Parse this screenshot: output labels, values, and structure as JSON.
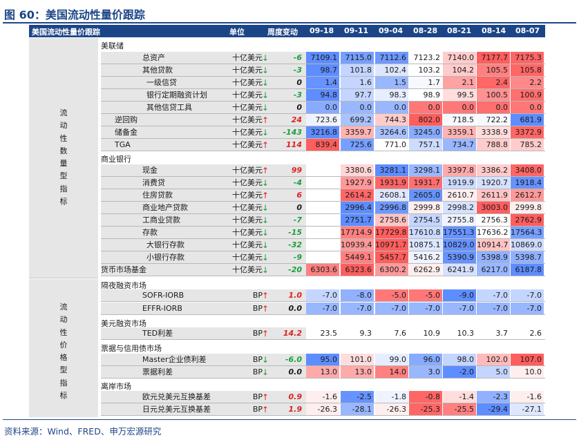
{
  "title": "图 60：美国流动性量价跟踪",
  "source": "资料来源：Wind、FRED、申万宏源研究",
  "header": {
    "name": "美国流动性量价跟踪",
    "unit": "单位",
    "change": "周度变动",
    "dates": [
      "09-18",
      "09-11",
      "09-04",
      "08-28",
      "08-21",
      "08-14",
      "08-07"
    ]
  },
  "groups": {
    "quantity": "流动性数量型指标",
    "price": "流动性价格型指标"
  },
  "sections": {
    "fed": "美联储",
    "bank": "商业银行",
    "overnight": "隔夜融资市场",
    "usd_funding": "美元融资市场",
    "bill_credit": "票据与信用债市场",
    "offshore": "离岸市场"
  },
  "colors": {
    "header": "#1c4587",
    "up": "#e02020",
    "down": "#1aa03a"
  },
  "rows": [
    {
      "label": "总资产",
      "unit": "十亿美元",
      "dir": "down",
      "chg": "-6",
      "cells": [
        "7109.1",
        "7115.0",
        "7112.6",
        "7123.2",
        "7140.0",
        "7177.7",
        "7175.3"
      ],
      "heat": [
        -0.95,
        -0.8,
        -0.85,
        0,
        0.3,
        0.95,
        0.9
      ]
    },
    {
      "label": "其他贷款",
      "unit": "十亿美元",
      "dir": "down",
      "chg": "-3",
      "cells": [
        "98.7",
        "101.8",
        "102.4",
        "103.2",
        "104.2",
        "105.5",
        "105.8"
      ],
      "heat": [
        -0.95,
        -0.35,
        -0.2,
        0,
        0.3,
        0.75,
        0.9
      ]
    },
    {
      "label": "一级信贷",
      "unit": "十亿美元",
      "dir": "down",
      "chg": "0",
      "cells": [
        "1.4",
        "1.6",
        "1.5",
        "1.7",
        "2.1",
        "2.4",
        "2.2"
      ],
      "heat": [
        -0.9,
        -0.35,
        -0.6,
        -0.05,
        0.55,
        0.9,
        0.7
      ]
    },
    {
      "label": "银行定期融资计划",
      "unit": "十亿美元",
      "dir": "down",
      "chg": "-3",
      "cells": [
        "94.8",
        "97.7",
        "98.3",
        "98.9",
        "99.5",
        "100.5",
        "100.9"
      ],
      "heat": [
        -0.95,
        -0.35,
        -0.15,
        0,
        0.2,
        0.65,
        0.85
      ]
    },
    {
      "label": "其他信贷工具",
      "unit": "十亿美元",
      "dir": "down",
      "chg": "0",
      "cells": [
        "0.0",
        "0.0",
        "0.0",
        "0.0",
        "0.0",
        "0.0",
        "0.0"
      ],
      "heat": [
        -0.7,
        -0.6,
        -0.6,
        0.8,
        0.8,
        0.85,
        0.8
      ]
    },
    {
      "label": "逆回购",
      "unit": "十亿美元",
      "dir": "up",
      "chg": "24",
      "cells": [
        "723.6",
        "699.2",
        "744.3",
        "802.0",
        "718.5",
        "722.2",
        "681.9"
      ],
      "heat": [
        -0.1,
        -0.5,
        0.3,
        0.95,
        -0.05,
        -0.05,
        -0.95
      ]
    },
    {
      "label": "储备金",
      "unit": "十亿美元",
      "dir": "down",
      "chg": "-143",
      "cells": [
        "3216.8",
        "3359.7",
        "3264.6",
        "3245.0",
        "3359.1",
        "3338.9",
        "3372.9"
      ],
      "heat": [
        -0.95,
        0.45,
        -0.5,
        -0.7,
        0.45,
        0.2,
        0.9
      ]
    },
    {
      "label": "TGA",
      "unit": "十亿美元",
      "dir": "up",
      "chg": "114",
      "cells": [
        "839.4",
        "725.6",
        "771.0",
        "757.1",
        "734.7",
        "788.8",
        "785.2"
      ],
      "heat": [
        0.95,
        -0.8,
        0.0,
        -0.3,
        -0.6,
        0.3,
        0.3
      ]
    },
    {
      "label": "现金",
      "unit": "十亿美元",
      "dir": "up",
      "chg": "99",
      "cells": [
        "",
        "3380.6",
        "3281.1",
        "3298.1",
        "3397.8",
        "3386.2",
        "3408.0"
      ],
      "heat": [
        null,
        0.25,
        -0.95,
        -0.6,
        0.5,
        0.3,
        0.9
      ]
    },
    {
      "label": "消费贷",
      "unit": "十亿美元",
      "dir": "down",
      "chg": "-4",
      "cells": [
        "",
        "1927.9",
        "1931.9",
        "1931.7",
        "1919.9",
        "1920.7",
        "1918.4"
      ],
      "heat": [
        null,
        0.6,
        0.9,
        0.85,
        -0.3,
        -0.25,
        -0.9
      ]
    },
    {
      "label": "住房贷款",
      "unit": "十亿美元",
      "dir": "up",
      "chg": "6",
      "cells": [
        "",
        "2614.2",
        "2608.1",
        "2605.0",
        "2610.7",
        "2611.9",
        "2612.7"
      ],
      "heat": [
        null,
        0.9,
        -0.2,
        -0.9,
        0.1,
        0.35,
        0.6
      ]
    },
    {
      "label": "商业地产贷款",
      "unit": "十亿美元",
      "dir": "down",
      "chg": "0",
      "cells": [
        "",
        "2996.4",
        "2996.8",
        "2999.8",
        "2998.2",
        "3003.0",
        "2999.8"
      ],
      "heat": [
        null,
        -0.95,
        -0.85,
        0.1,
        -0.25,
        0.95,
        0.1
      ]
    },
    {
      "label": "工商业贷款",
      "unit": "十亿美元",
      "dir": "down",
      "chg": "-7",
      "cells": [
        "",
        "2751.7",
        "2758.6",
        "2754.5",
        "2755.8",
        "2756.3",
        "2762.9"
      ],
      "heat": [
        null,
        -0.95,
        0.35,
        -0.35,
        -0.1,
        0.0,
        0.95
      ]
    },
    {
      "label": "存款",
      "unit": "十亿美元",
      "dir": "down",
      "chg": "-15",
      "cells": [
        "",
        "17714.9",
        "17729.8",
        "17610.8",
        "17551.3",
        "17636.2",
        "17564.3"
      ],
      "heat": [
        null,
        0.75,
        0.95,
        -0.3,
        -0.9,
        0.0,
        -0.8
      ]
    },
    {
      "label": "大银行存款",
      "unit": "十亿美元",
      "dir": "down",
      "chg": "-32",
      "cells": [
        "",
        "10939.4",
        "10971.7",
        "10875.1",
        "10829.0",
        "10914.7",
        "10869.0"
      ],
      "heat": [
        null,
        0.6,
        0.95,
        -0.2,
        -0.9,
        0.35,
        -0.3
      ]
    },
    {
      "label": "小银行存款",
      "unit": "十亿美元",
      "dir": "down",
      "chg": "-9",
      "cells": [
        "",
        "5449.1",
        "5457.7",
        "5416.2",
        "5390.9",
        "5398.9",
        "5398.7"
      ],
      "heat": [
        null,
        0.75,
        0.95,
        -0.1,
        -0.9,
        -0.65,
        -0.65
      ]
    },
    {
      "label": "货币市场基金",
      "unit": "十亿美元",
      "dir": "down",
      "chg": "-20",
      "cells": [
        "6303.6",
        "6323.6",
        "6300.2",
        "6262.9",
        "6241.9",
        "6217.0",
        "6187.8"
      ],
      "heat": [
        0.75,
        0.95,
        0.6,
        0.1,
        -0.25,
        -0.6,
        -0.95
      ]
    },
    {
      "label": "SOFR-IORB",
      "unit": "BP",
      "dir": "up",
      "chg": "1.0",
      "cells": [
        "-7.0",
        "-8.0",
        "-5.0",
        "-5.0",
        "-9.0",
        "-7.0",
        "-7.0"
      ],
      "heat": [
        -0.35,
        -0.65,
        0.8,
        0.8,
        -0.95,
        -0.35,
        -0.35
      ]
    },
    {
      "label": "EFFR-IORB",
      "unit": "BP",
      "dir": "up",
      "chg": "0.0",
      "cells": [
        "-7.0",
        "-7.0",
        "-7.0",
        "-7.0",
        "-7.0",
        "-7.0",
        "-7.0"
      ],
      "heat": [
        -0.6,
        -0.6,
        -0.6,
        -0.6,
        -0.6,
        -0.6,
        -0.6
      ]
    },
    {
      "label": "TED利差",
      "unit": "BP",
      "dir": "up",
      "chg": "14.2",
      "cells": [
        "23.5",
        "9.3",
        "7.6",
        "10.9",
        "10.3",
        "3.7",
        "2.6"
      ],
      "heat": [
        0,
        0,
        0,
        0,
        0,
        0,
        0
      ]
    },
    {
      "label": "Master企业债利差",
      "unit": "BP",
      "dir": "down",
      "chg": "-6.0",
      "cells": [
        "95.0",
        "101.0",
        "99.0",
        "96.0",
        "98.0",
        "102.0",
        "107.0"
      ],
      "heat": [
        -0.95,
        0.2,
        -0.15,
        -0.7,
        -0.35,
        0.4,
        0.95
      ]
    },
    {
      "label": "票据利差",
      "unit": "BP",
      "dir": "down",
      "chg": "0.0",
      "cells": [
        "13.0",
        "13.0",
        "14.0",
        "3.0",
        "-2.0",
        "5.0",
        "10.0"
      ],
      "heat": [
        0.5,
        0.5,
        0.75,
        -0.6,
        -0.95,
        -0.35,
        0.1
      ]
    },
    {
      "label": "欧元兑美元互换基差",
      "unit": "BP",
      "dir": "up",
      "chg": "0.9",
      "cells": [
        "-1.6",
        "-2.5",
        "-1.8",
        "-0.8",
        "-1.4",
        "-2.3",
        "-1.6"
      ],
      "heat": [
        0.1,
        -0.9,
        -0.1,
        0.9,
        0.2,
        -0.65,
        0.1
      ]
    },
    {
      "label": "日元兑美元互换基差",
      "unit": "BP",
      "dir": "up",
      "chg": "1.9",
      "cells": [
        "-26.3",
        "-28.1",
        "-26.3",
        "-25.3",
        "-25.5",
        "-29.4",
        "-27.1"
      ],
      "heat": [
        0.1,
        -0.6,
        0.1,
        0.9,
        0.75,
        -0.95,
        -0.2
      ]
    }
  ]
}
